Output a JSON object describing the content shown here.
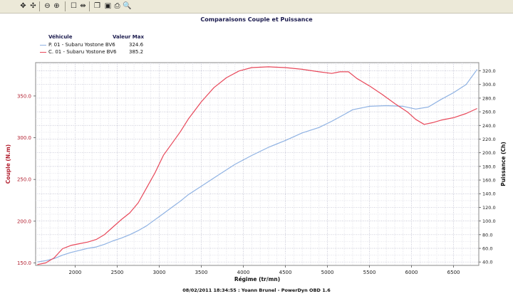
{
  "toolbar": {
    "buttons": [
      {
        "name": "move-icon",
        "glyph": "✥"
      },
      {
        "name": "pan-icon",
        "glyph": "✣"
      },
      {
        "name": "zoom-out-icon",
        "glyph": "⊖"
      },
      {
        "name": "zoom-in-icon",
        "glyph": "⊕"
      },
      {
        "name": "select-rect-icon",
        "glyph": "☐"
      },
      {
        "name": "cursor-marker-icon",
        "glyph": "⇹"
      },
      {
        "name": "copy-icon",
        "glyph": "❐"
      },
      {
        "name": "save-icon",
        "glyph": "▣"
      },
      {
        "name": "print-icon",
        "glyph": "⎙"
      },
      {
        "name": "print-preview-icon",
        "glyph": "🔍"
      }
    ]
  },
  "chart_data": {
    "type": "line",
    "title": "Comparaisons Couple et Puissance",
    "xlabel": "Régime (tr/mn)",
    "ylabel_left": "Couple (N.m)",
    "ylabel_right": "Puissance (Ch)",
    "xlim": [
      1530,
      6800
    ],
    "ylim_left": [
      147,
      390
    ],
    "ylim_right": [
      35,
      332
    ],
    "x_ticks": [
      2000,
      2500,
      3000,
      3500,
      4000,
      4500,
      5000,
      5500,
      6000,
      6500
    ],
    "y_left_ticks": [
      150.0,
      200.0,
      250.0,
      300.0,
      350.0
    ],
    "y_right_ticks": [
      40.0,
      60.0,
      80.0,
      100.0,
      120.0,
      140.0,
      160.0,
      180.0,
      200.0,
      220.0,
      240.0,
      260.0,
      280.0,
      300.0,
      320.0
    ],
    "y_left_tick_labels": [
      "150.0",
      "200.0",
      "250.0",
      "300.0",
      "350.0"
    ],
    "y_right_tick_labels": [
      "40.0",
      "60.0",
      "80.0",
      "100.0",
      "120.0",
      "140.0",
      "160.0",
      "180.0",
      "200.0",
      "220.0",
      "240.0",
      "260.0",
      "280.0",
      "300.0",
      "320.0"
    ],
    "grid": true,
    "legend": {
      "placement": "top-left",
      "col_vehicle": "Véhicule",
      "col_max": "Valeur Max",
      "entries": [
        {
          "label": "P. 01 - Subaru Yostone BV6",
          "max": "324.6",
          "color": "#8fb2e3"
        },
        {
          "label": "C. 01 - Subaru Yostone BV6",
          "max": "385.2",
          "color": "#e8485a"
        }
      ]
    },
    "series": [
      {
        "name": "P. 01 - Subaru Yostone BV6",
        "axis": "right",
        "color": "#8fb2e3",
        "x": [
          1550,
          1650,
          1750,
          1850,
          1950,
          2050,
          2150,
          2250,
          2350,
          2450,
          2550,
          2650,
          2750,
          2850,
          2950,
          3050,
          3150,
          3250,
          3350,
          3500,
          3700,
          3900,
          4100,
          4300,
          4500,
          4700,
          4900,
          5050,
          5200,
          5300,
          5500,
          5700,
          5900,
          6050,
          6200,
          6350,
          6500,
          6650,
          6780
        ],
        "y": [
          40,
          42,
          45,
          50,
          54,
          57,
          60,
          62,
          66,
          71,
          75,
          80,
          86,
          93,
          102,
          111,
          120,
          129,
          139,
          151,
          167,
          183,
          196,
          208,
          218,
          229,
          237,
          246,
          256,
          263,
          268,
          269,
          268,
          264,
          267,
          278,
          288,
          300,
          322
        ]
      },
      {
        "name": "C. 01 - Subaru Yostone BV6",
        "axis": "left",
        "color": "#e8485a",
        "x": [
          1550,
          1650,
          1750,
          1850,
          1950,
          2050,
          2150,
          2250,
          2350,
          2450,
          2550,
          2650,
          2750,
          2850,
          2950,
          3050,
          3150,
          3250,
          3350,
          3500,
          3650,
          3800,
          3950,
          4100,
          4300,
          4500,
          4700,
          4900,
          5050,
          5150,
          5250,
          5350,
          5500,
          5650,
          5800,
          5950,
          6050,
          6150,
          6250,
          6350,
          6500,
          6650,
          6780
        ],
        "y": [
          148,
          150,
          156,
          167,
          171,
          173,
          175,
          178,
          184,
          193,
          202,
          210,
          222,
          240,
          258,
          279,
          293,
          307,
          323,
          343,
          360,
          372,
          380,
          384,
          385,
          384,
          382,
          379,
          377,
          379,
          379,
          371,
          362,
          352,
          341,
          331,
          322,
          316,
          318,
          321,
          324,
          329,
          335
        ]
      }
    ]
  },
  "footer": "08/02/2011 18:34:55 : Yoann Brunel - PowerDyn OBD 1.6"
}
